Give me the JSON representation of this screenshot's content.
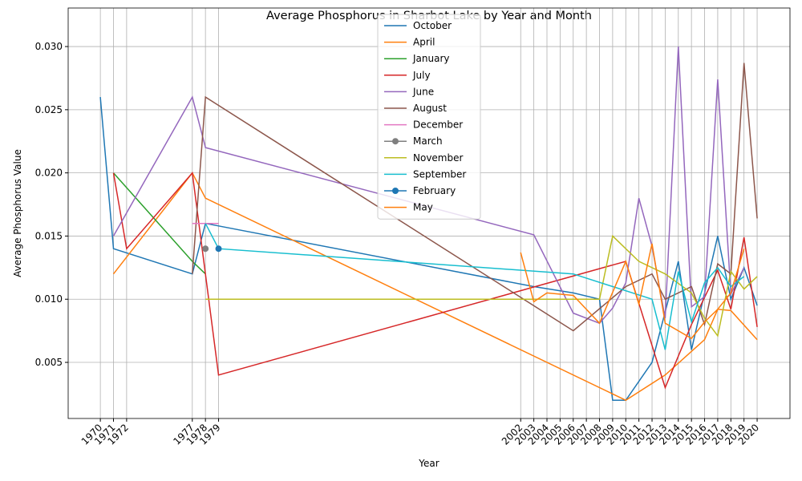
{
  "chart_data": {
    "type": "line",
    "title": "Average Phosphorus in Sharbot Lake by Year and Month",
    "x_label": "Year",
    "y_label": "Average Phosphorus Value",
    "xlim": [
      1967.55,
      2022.5
    ],
    "ylim": [
      0.00056,
      0.03305
    ],
    "xticks": [
      1970,
      1971,
      1972,
      1977,
      1978,
      1979,
      2002,
      2003,
      2004,
      2005,
      2006,
      2007,
      2008,
      2009,
      2010,
      2011,
      2012,
      2013,
      2014,
      2015,
      2016,
      2017,
      2018,
      2019,
      2020
    ],
    "yticks": [
      {
        "value": 0.005,
        "label": "0.005"
      },
      {
        "value": 0.01,
        "label": "0.010"
      },
      {
        "value": 0.015,
        "label": "0.015"
      },
      {
        "value": 0.02,
        "label": "0.020"
      },
      {
        "value": 0.025,
        "label": "0.025"
      },
      {
        "value": 0.03,
        "label": "0.030"
      }
    ],
    "grid": true,
    "legend": "upper center",
    "series": [
      {
        "name": "October",
        "color": "#1f77b4",
        "x": [
          1970,
          1971,
          1977,
          1978,
          2003,
          2006,
          2008,
          2009,
          2010,
          2012,
          2014,
          2015,
          2017,
          2018,
          2019,
          2020
        ],
        "values": [
          0.026,
          0.014,
          0.012,
          0.016,
          0.011,
          0.0105,
          0.01,
          0.002,
          0.002,
          0.005,
          0.013,
          0.006,
          0.015,
          0.01,
          0.0125,
          0.0095
        ]
      },
      {
        "name": "April",
        "color": "#ff7f0e",
        "x": [
          1971,
          1977,
          1978,
          2010,
          2013,
          2016,
          2017,
          2018,
          2020
        ],
        "values": [
          0.012,
          0.02,
          0.018,
          0.002,
          0.004,
          0.0068,
          0.0092,
          0.0091,
          0.0068
        ]
      },
      {
        "name": "January",
        "color": "#2ca02c",
        "x": [
          1971,
          1977,
          1978
        ],
        "values": [
          0.02,
          0.013,
          0.012
        ]
      },
      {
        "name": "July",
        "color": "#d62728",
        "x": [
          1971,
          1972,
          1977,
          1979,
          2010,
          2013,
          2015,
          2017,
          2018,
          2019,
          2020
        ],
        "values": [
          0.02,
          0.014,
          0.02,
          0.004,
          0.013,
          0.003,
          0.008,
          0.0123,
          0.0092,
          0.0149,
          0.0078
        ]
      },
      {
        "name": "June",
        "color": "#9467bd",
        "x": [
          1971,
          1977,
          1978,
          2003,
          2006,
          2008,
          2009,
          2010,
          2011,
          2012,
          2013,
          2014,
          2015,
          2016,
          2017,
          2018,
          2019
        ],
        "values": [
          0.015,
          0.026,
          0.022,
          0.0151,
          0.0089,
          0.0081,
          0.0093,
          0.0113,
          0.018,
          0.0142,
          0.0085,
          0.03,
          0.0094,
          0.0102,
          0.0274,
          0.0104,
          0.0125
        ]
      },
      {
        "name": "August",
        "color": "#8c564b",
        "x": [
          1977,
          1978,
          2006,
          2010,
          2012,
          2013,
          2015,
          2016,
          2017,
          2018,
          2019,
          2020
        ],
        "values": [
          0.012,
          0.026,
          0.0075,
          0.011,
          0.012,
          0.01,
          0.011,
          0.008,
          0.0128,
          0.012,
          0.0287,
          0.0164
        ]
      },
      {
        "name": "December",
        "color": "#e377c2",
        "x": [
          1977,
          1978,
          1979
        ],
        "values": [
          0.016,
          0.016,
          0.016
        ]
      },
      {
        "name": "March",
        "color": "#7f7f7f",
        "marker": "o",
        "x": [
          1978
        ],
        "values": [
          0.014
        ]
      },
      {
        "name": "November",
        "color": "#bcbd22",
        "x": [
          1978,
          2008,
          2009,
          2011,
          2013,
          2015,
          2016,
          2017,
          2018,
          2019,
          2020
        ],
        "values": [
          0.01,
          0.01,
          0.015,
          0.013,
          0.012,
          0.0105,
          0.0085,
          0.0071,
          0.0122,
          0.0108,
          0.0118
        ]
      },
      {
        "name": "September",
        "color": "#17becf",
        "x": [
          1978,
          1979,
          2006,
          2012,
          2013,
          2014,
          2015,
          2016,
          2017,
          2018,
          2019
        ],
        "values": [
          0.016,
          0.014,
          0.012,
          0.01,
          0.006,
          0.0122,
          0.0082,
          0.0113,
          0.0125,
          0.011,
          0.0118
        ]
      },
      {
        "name": "February",
        "color": "#1f77b4",
        "marker": "o",
        "x": [
          1979
        ],
        "values": [
          0.014
        ]
      },
      {
        "name": "May",
        "color": "#ff7f0e",
        "x": [
          2002,
          2003,
          2004,
          2006,
          2008,
          2010,
          2011,
          2012,
          2013,
          2015,
          2016,
          2017,
          2018,
          2019
        ],
        "values": [
          0.0137,
          0.0098,
          0.0105,
          0.0103,
          0.0081,
          0.013,
          0.0096,
          0.0144,
          0.0081,
          0.0069,
          0.0082,
          0.0092,
          0.0105,
          0.014
        ]
      }
    ]
  }
}
